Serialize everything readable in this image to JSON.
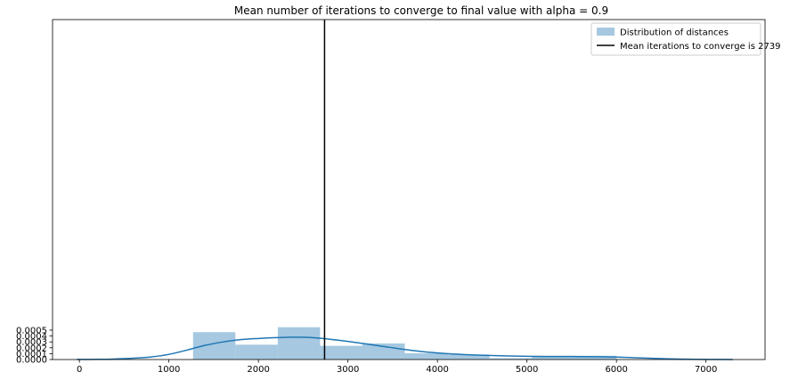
{
  "chart_data": {
    "type": "bar",
    "title": "Mean number of iterations to converge to final value with alpha = 0.9",
    "xlabel": "",
    "ylabel": "",
    "xlim": [
      -300,
      7660
    ],
    "ylim": [
      0,
      0.00578
    ],
    "x_ticks": [
      0,
      1000,
      2000,
      3000,
      4000,
      5000,
      6000,
      7000
    ],
    "x_tick_labels": [
      "0",
      "1000",
      "2000",
      "3000",
      "4000",
      "5000",
      "6000",
      "7000"
    ],
    "y_ticks": [
      0,
      0.0001,
      0.0002,
      0.0003,
      0.0004,
      0.0005
    ],
    "y_tick_labels": [
      "0.0000",
      "0.0001",
      "0.0002",
      "0.0003",
      "0.0004",
      "0.0005"
    ],
    "grid": false,
    "legend_position": "top-right",
    "histogram": {
      "name": "Distribution of distances",
      "color": "#a6c8e0",
      "bin_edges": [
        1270,
        1743,
        2216,
        2689,
        3162,
        3635,
        4108,
        4581,
        5054,
        5527,
        6000
      ],
      "values": [
        0.000465,
        0.000252,
        0.00055,
        0.000233,
        0.000274,
        0.000106,
        8.5e-05,
        2.2e-05,
        6.4e-05,
        6.4e-05
      ]
    },
    "kde": {
      "color": "#1f77b4",
      "x": [
        -30,
        200,
        400,
        600,
        800,
        1000,
        1200,
        1400,
        1600,
        1800,
        2000,
        2200,
        2400,
        2600,
        2800,
        3000,
        3200,
        3400,
        3600,
        3800,
        4000,
        4200,
        4400,
        4600,
        4800,
        5000,
        5200,
        5400,
        5600,
        5800,
        6000,
        6200,
        6400,
        6600,
        6800,
        7000,
        7300
      ],
      "y": [
        1e-06,
        3e-06,
        9e-06,
        2.2e-05,
        4.4e-05,
        8.8e-05,
        0.00016,
        0.00024,
        0.000298,
        0.000338,
        0.000358,
        0.000372,
        0.00038,
        0.000372,
        0.000345,
        0.000308,
        0.000266,
        0.000222,
        0.000178,
        0.00014,
        0.000112,
        9.2e-05,
        7.8e-05,
        6.8e-05,
        6e-05,
        5.5e-05,
        5.2e-05,
        5.1e-05,
        5e-05,
        4.7e-05,
        4.1e-05,
        3.1e-05,
        2e-05,
        1.1e-05,
        5e-06,
        2e-06,
        3e-07
      ]
    },
    "mean_line": {
      "name": "Mean iterations to converge is 2739",
      "value": 2739,
      "color": "#000000"
    }
  }
}
